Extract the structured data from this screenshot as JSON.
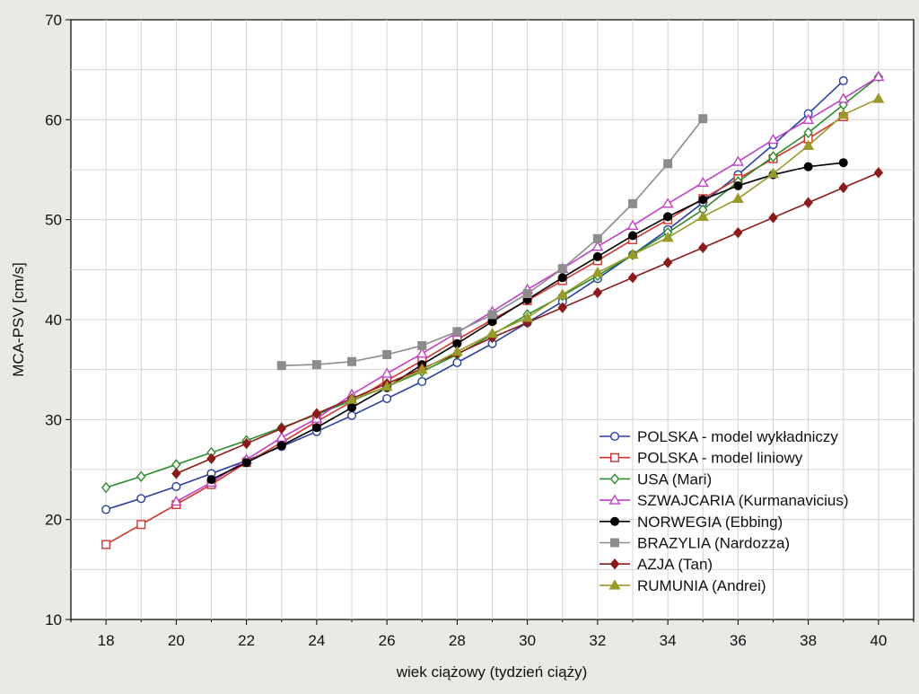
{
  "chart_data": {
    "type": "line",
    "title": "",
    "xlabel": "wiek ciążowy (tydzień ciąży)",
    "ylabel": "MCA-PSV [cm/s]",
    "xlim": [
      17,
      41
    ],
    "ylim": [
      10,
      70
    ],
    "xticks": [
      18,
      20,
      22,
      24,
      26,
      28,
      30,
      32,
      34,
      36,
      38,
      40
    ],
    "yticks": [
      10,
      20,
      30,
      40,
      50,
      60,
      70
    ],
    "grid": true,
    "legend_position": "bottom-right",
    "series": [
      {
        "name": "POLSKA - model wykładniczy",
        "color": "#2a3f9e",
        "marker": "circle-open",
        "x": [
          18,
          19,
          20,
          21,
          22,
          23,
          24,
          25,
          26,
          27,
          28,
          29,
          30,
          31,
          32,
          33,
          34,
          35,
          36,
          37,
          38,
          39
        ],
        "y": [
          21.0,
          22.1,
          23.3,
          24.6,
          25.9,
          27.3,
          28.8,
          30.4,
          32.1,
          33.8,
          35.7,
          37.6,
          39.7,
          41.8,
          44.1,
          46.5,
          49.0,
          51.7,
          54.5,
          57.5,
          60.6,
          63.9
        ]
      },
      {
        "name": "POLSKA - model liniowy",
        "color": "#d0342c",
        "marker": "square-open",
        "x": [
          18,
          19,
          20,
          21,
          22,
          23,
          24,
          25,
          26,
          27,
          28,
          29,
          30,
          31,
          32,
          33,
          34,
          35,
          36,
          37,
          38,
          39
        ],
        "y": [
          17.5,
          19.5,
          21.5,
          23.5,
          25.7,
          27.7,
          29.8,
          31.8,
          33.9,
          35.9,
          38.0,
          40.0,
          41.9,
          43.9,
          45.9,
          48.0,
          50.0,
          52.1,
          54.1,
          56.1,
          58.1,
          60.3
        ]
      },
      {
        "name": "USA (Mari)",
        "color": "#2e8b2e",
        "marker": "diamond-open",
        "x": [
          18,
          19,
          20,
          21,
          22,
          23,
          24,
          25,
          26,
          27,
          28,
          29,
          30,
          31,
          32,
          33,
          34,
          35,
          36,
          37,
          38,
          39,
          40
        ],
        "y": [
          23.2,
          24.3,
          25.5,
          26.7,
          27.9,
          29.2,
          30.5,
          31.9,
          33.3,
          34.8,
          36.5,
          38.5,
          40.5,
          42.4,
          44.4,
          46.5,
          48.7,
          51.0,
          53.8,
          56.3,
          58.7,
          61.5,
          64.3
        ]
      },
      {
        "name": "SZWAJCARIA (Kurmanavicius)",
        "color": "#c040c8",
        "marker": "triangle-open",
        "x": [
          20,
          21,
          22,
          23,
          24,
          25,
          26,
          27,
          28,
          29,
          30,
          31,
          32,
          33,
          34,
          35,
          36,
          37,
          38,
          39,
          40
        ],
        "y": [
          21.8,
          23.7,
          26.0,
          28.2,
          30.1,
          32.5,
          34.6,
          36.6,
          38.7,
          40.8,
          43.0,
          45.1,
          47.3,
          49.4,
          51.6,
          53.7,
          55.8,
          58.0,
          60.0,
          62.1,
          64.3
        ]
      },
      {
        "name": "NORWEGIA (Ebbing)",
        "color": "#000000",
        "marker": "circle-filled",
        "x": [
          21,
          22,
          23,
          24,
          25,
          26,
          27,
          28,
          29,
          30,
          31,
          32,
          33,
          34,
          35,
          36,
          37,
          38,
          39
        ],
        "y": [
          24.0,
          25.7,
          27.4,
          29.2,
          31.2,
          33.2,
          35.5,
          37.6,
          39.8,
          42.0,
          44.2,
          46.3,
          48.4,
          50.3,
          52.0,
          53.4,
          54.5,
          55.3,
          55.7
        ]
      },
      {
        "name": "BRAZYLIA (Nardozza)",
        "color": "#8c8c8c",
        "marker": "square-filled",
        "x": [
          23,
          24,
          25,
          26,
          27,
          28,
          29,
          30,
          31,
          32,
          33,
          34,
          35
        ],
        "y": [
          35.4,
          35.5,
          35.8,
          36.5,
          37.4,
          38.8,
          40.5,
          42.6,
          45.1,
          48.1,
          51.6,
          55.6,
          60.1
        ]
      },
      {
        "name": "AZJA (Tan)",
        "color": "#8b1a1a",
        "marker": "diamond-filled",
        "x": [
          20,
          21,
          22,
          23,
          24,
          25,
          26,
          27,
          28,
          29,
          30,
          31,
          32,
          33,
          34,
          35,
          36,
          37,
          38,
          39,
          40
        ],
        "y": [
          24.6,
          26.1,
          27.6,
          29.1,
          30.6,
          32.1,
          33.6,
          35.1,
          36.6,
          38.2,
          39.7,
          41.2,
          42.7,
          44.2,
          45.7,
          47.2,
          48.7,
          50.2,
          51.7,
          53.2,
          54.7
        ]
      },
      {
        "name": "RUMUNIA (Andrei)",
        "color": "#9a9a2a",
        "marker": "triangle-filled",
        "x": [
          25,
          26,
          27,
          28,
          29,
          30,
          31,
          32,
          33,
          34,
          35,
          36,
          37,
          38,
          39,
          40
        ],
        "y": [
          32.0,
          33.3,
          35.0,
          36.8,
          38.6,
          40.2,
          42.5,
          44.7,
          46.5,
          48.2,
          50.3,
          52.1,
          54.6,
          57.4,
          60.5,
          62.1
        ]
      }
    ]
  }
}
